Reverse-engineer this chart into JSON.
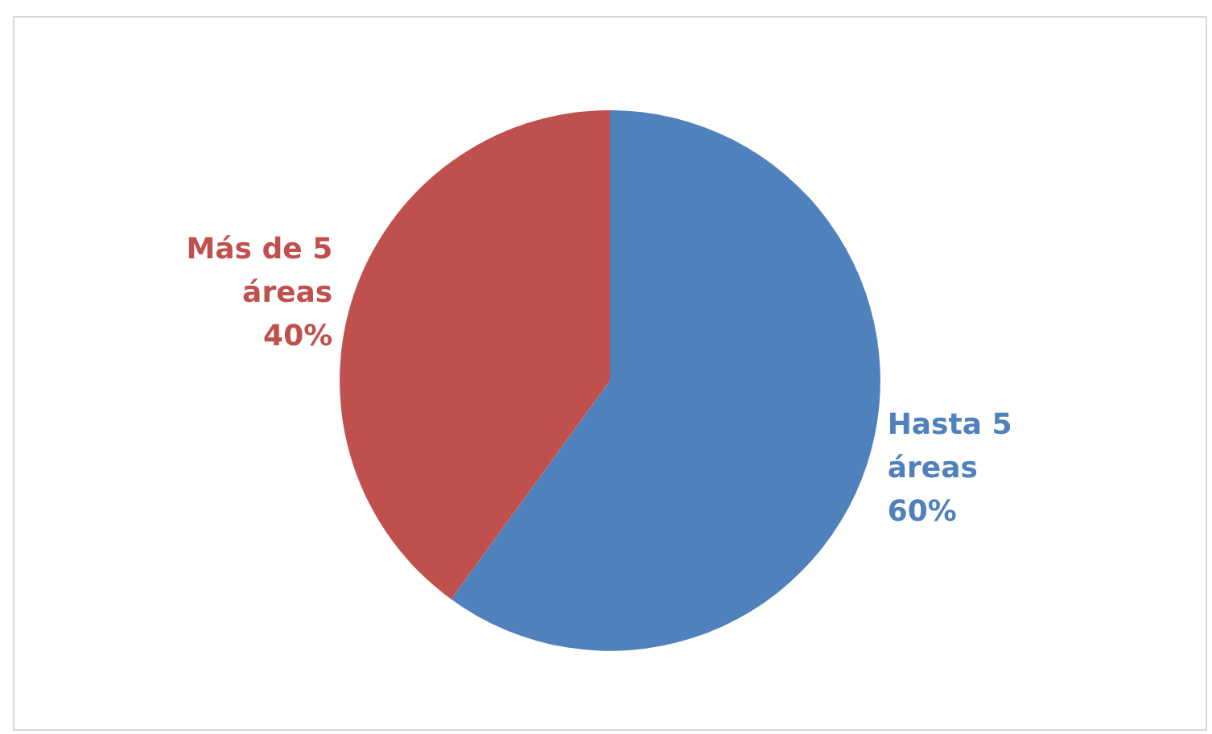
{
  "chart_data": {
    "type": "pie",
    "categories": [
      "Hasta 5 áreas",
      "Más de 5 áreas"
    ],
    "values": [
      60,
      40
    ],
    "value_labels": [
      "60%",
      "40%"
    ],
    "colors": [
      "#4f81bd",
      "#c0504d"
    ],
    "legend": false
  }
}
